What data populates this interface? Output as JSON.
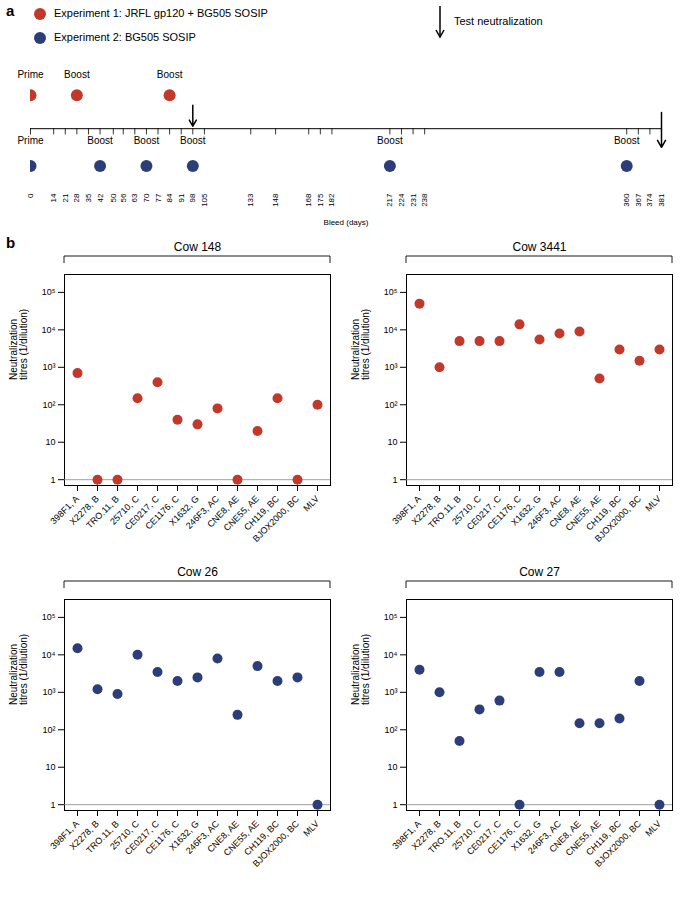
{
  "chart_data": [
    {
      "type": "timeline",
      "annotations": [
        "a"
      ],
      "xlabel": "Bleed (days)",
      "xlim": [
        0,
        381
      ],
      "xticks": [
        0,
        14,
        21,
        28,
        35,
        42,
        50,
        56,
        63,
        70,
        77,
        84,
        91,
        98,
        105,
        133,
        148,
        168,
        175,
        182,
        217,
        224,
        231,
        238,
        360,
        367,
        374,
        381
      ],
      "legend": "top",
      "arrow_label": "Test neutralization",
      "series": [
        {
          "name": "Experiment 1: JRFL gp120 + BG505 SOSIP",
          "color": "#c0392b",
          "x": [
            0,
            28,
            84
          ],
          "labels": [
            "Prime",
            "Boost",
            "Boost"
          ],
          "test_day": 98
        },
        {
          "name": "Experiment 2: BG505 SOSIP",
          "color": "#2c3e7a",
          "x": [
            0,
            42,
            70,
            98,
            217,
            360
          ],
          "labels": [
            "Prime",
            "Boost",
            "Boost",
            "Boost",
            "Boost",
            "Boost"
          ],
          "test_day": 381
        }
      ]
    },
    {
      "type": "scatter",
      "annotations": [
        "b"
      ],
      "title": "Cow 148",
      "categories": [
        "398F1, A",
        "X2278, B",
        "TRO.11, B",
        "25710, C",
        "CE0217, C",
        "CE1176, C",
        "X1632, G",
        "246F3, AC",
        "CNE8, AE",
        "CNE55, AE",
        "CH119, BC",
        "BJOX2000, BC",
        "MLV"
      ],
      "values": [
        700,
        1,
        1,
        150,
        400,
        40,
        30,
        80,
        1,
        20,
        150,
        1,
        100
      ],
      "color": "#c0392b",
      "log": "y",
      "ylim": [
        0.7,
        300000
      ],
      "yticks": [
        1,
        10,
        {
          "value": 100,
          "label": "10²"
        },
        {
          "value": 1000,
          "label": "10³"
        },
        {
          "value": 10000,
          "label": "10⁴"
        },
        {
          "value": 100000,
          "label": "10⁵"
        }
      ],
      "hline": 1,
      "ylabel": "Neutralization\ntitres (1/dilution)"
    },
    {
      "type": "scatter",
      "title": "Cow 3441",
      "categories": [
        "398F1, A",
        "X2278, B",
        "TRO.11, B",
        "25710, C",
        "CE0217, C",
        "CE1176, C",
        "X1632, G",
        "246F3, AC",
        "CNE8, AE",
        "CNE55, AE",
        "CH119, BC",
        "BJOX2000, BC",
        "MLV"
      ],
      "values": [
        50000,
        1000,
        5000,
        5000,
        5000,
        14000,
        5500,
        8000,
        9000,
        500,
        3000,
        1500,
        3000
      ],
      "color": "#c0392b",
      "log": "y",
      "ylim": [
        0.7,
        300000
      ],
      "yticks": [
        1,
        10,
        {
          "value": 100,
          "label": "10²"
        },
        {
          "value": 1000,
          "label": "10³"
        },
        {
          "value": 10000,
          "label": "10⁴"
        },
        {
          "value": 100000,
          "label": "10⁵"
        }
      ],
      "hline": 1,
      "ylabel": "Neutralization\ntitres (1/dilution)"
    },
    {
      "type": "scatter",
      "title": "Cow 26",
      "categories": [
        "398F1, A",
        "X2278, B",
        "TRO.11, B",
        "25710, C",
        "CE0217, C",
        "CE1176, C",
        "X1632, G",
        "246F3, AC",
        "CNE8, AE",
        "CNE55, AE",
        "CH119, BC",
        "BJOX2000, BC",
        "MLV"
      ],
      "values": [
        15000,
        1200,
        900,
        10000,
        3500,
        2000,
        2500,
        8000,
        250,
        5000,
        2000,
        2500,
        1
      ],
      "color": "#2c3e7a",
      "log": "y",
      "ylim": [
        0.7,
        300000
      ],
      "yticks": [
        1,
        10,
        {
          "value": 100,
          "label": "10²"
        },
        {
          "value": 1000,
          "label": "10³"
        },
        {
          "value": 10000,
          "label": "10⁴"
        },
        {
          "value": 100000,
          "label": "10⁵"
        }
      ],
      "hline": 1,
      "ylabel": "Neutralization\ntitres (1/dilution)"
    },
    {
      "type": "scatter",
      "title": "Cow 27",
      "categories": [
        "398F1, A",
        "X2278, B",
        "TRO.11, B",
        "25710, C",
        "CE0217, C",
        "CE1176, C",
        "X1632, G",
        "246F3, AC",
        "CNE8, AE",
        "CNE55, AE",
        "CH119, BC",
        "BJOX2000, BC",
        "MLV"
      ],
      "values": [
        4000,
        1000,
        50,
        350,
        600,
        1,
        3500,
        3500,
        150,
        150,
        200,
        2000,
        1
      ],
      "color": "#2c3e7a",
      "log": "y",
      "ylim": [
        0.7,
        300000
      ],
      "yticks": [
        1,
        10,
        {
          "value": 100,
          "label": "10²"
        },
        {
          "value": 1000,
          "label": "10³"
        },
        {
          "value": 10000,
          "label": "10⁴"
        },
        {
          "value": 100000,
          "label": "10⁵"
        }
      ],
      "hline": 1,
      "ylabel": "Neutralization\ntitres (1/dilution)"
    }
  ]
}
